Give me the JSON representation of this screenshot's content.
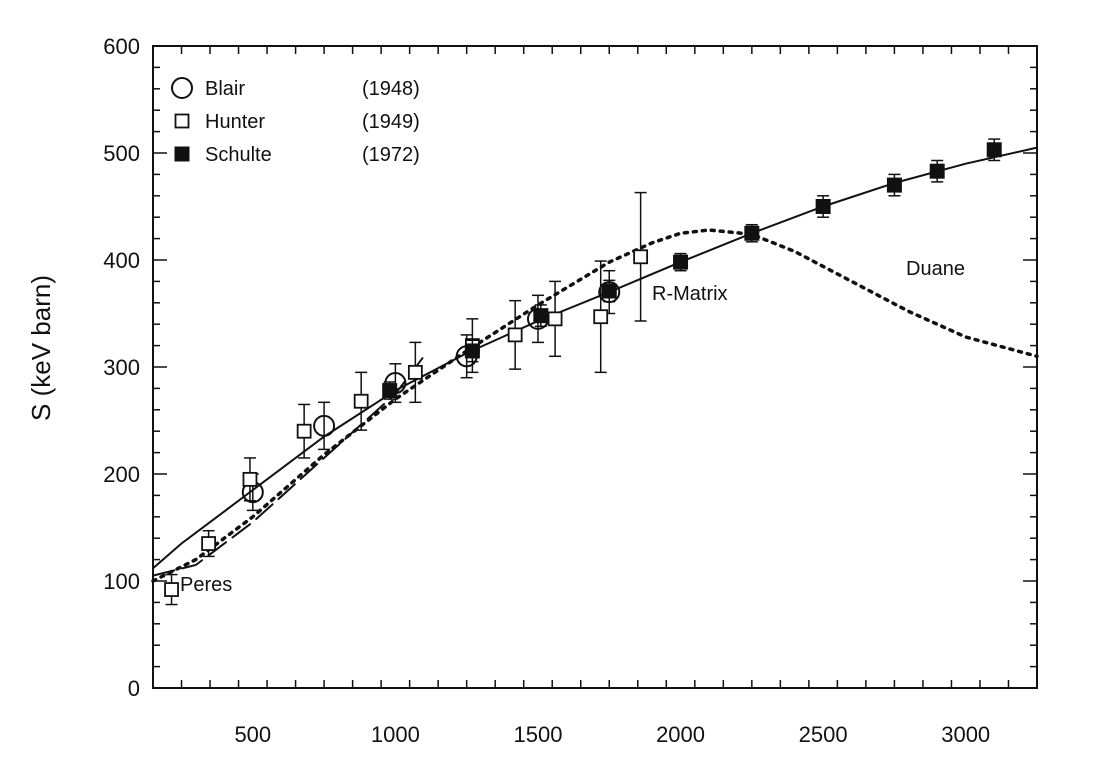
{
  "chart_data": {
    "type": "scatter",
    "title": "",
    "xlabel": "",
    "ylabel": "S  (keV barn)",
    "xlim": [
      150,
      3250
    ],
    "ylim": [
      0,
      600
    ],
    "x_ticks": [
      500,
      1000,
      1500,
      2000,
      2500,
      3000
    ],
    "y_ticks": [
      0,
      100,
      200,
      300,
      400,
      500,
      600
    ],
    "grid": false,
    "legend_position": "top-left",
    "legend": [
      {
        "marker": "open-circle",
        "name": "Blair",
        "year": "(1948)"
      },
      {
        "marker": "open-square",
        "name": "Hunter",
        "year": "(1949)"
      },
      {
        "marker": "filled-square",
        "name": "Schulte",
        "year": "(1972)"
      }
    ],
    "series": [
      {
        "name": "Blair",
        "marker": "open-circle",
        "points": [
          {
            "x": 500,
            "y": 183,
            "err": 17
          },
          {
            "x": 750,
            "y": 245,
            "err": 22
          },
          {
            "x": 1000,
            "y": 285,
            "err": 18
          },
          {
            "x": 1250,
            "y": 310,
            "err": 20
          },
          {
            "x": 1500,
            "y": 345,
            "err": 22
          },
          {
            "x": 1750,
            "y": 370,
            "err": 20
          }
        ]
      },
      {
        "name": "Hunter",
        "marker": "open-square",
        "points": [
          {
            "x": 215,
            "y": 92,
            "err": 14
          },
          {
            "x": 345,
            "y": 135,
            "err": 12
          },
          {
            "x": 490,
            "y": 195,
            "err": 20
          },
          {
            "x": 680,
            "y": 240,
            "err": 25
          },
          {
            "x": 880,
            "y": 268,
            "err": 27
          },
          {
            "x": 1070,
            "y": 295,
            "err": 28
          },
          {
            "x": 1270,
            "y": 320,
            "err": 25
          },
          {
            "x": 1420,
            "y": 330,
            "err": 32
          },
          {
            "x": 1560,
            "y": 345,
            "err": 35
          },
          {
            "x": 1720,
            "y": 347,
            "err": 52
          },
          {
            "x": 1860,
            "y": 403,
            "err": 60
          }
        ]
      },
      {
        "name": "Schulte",
        "marker": "filled-square",
        "points": [
          {
            "x": 980,
            "y": 278,
            "err": 8
          },
          {
            "x": 1270,
            "y": 315,
            "err": 10
          },
          {
            "x": 1510,
            "y": 348,
            "err": 10
          },
          {
            "x": 1750,
            "y": 371,
            "err": 10
          },
          {
            "x": 2000,
            "y": 398,
            "err": 8
          },
          {
            "x": 2250,
            "y": 425,
            "err": 8
          },
          {
            "x": 2500,
            "y": 450,
            "err": 10
          },
          {
            "x": 2750,
            "y": 470,
            "err": 10
          },
          {
            "x": 2900,
            "y": 483,
            "err": 10
          },
          {
            "x": 3100,
            "y": 503,
            "err": 10
          }
        ]
      }
    ],
    "curves": [
      {
        "label": "R-Matrix",
        "style": "solid",
        "x": [
          150,
          250,
          400,
          500,
          750,
          1000,
          1250,
          1500,
          1750,
          2000,
          2250,
          2500,
          2750,
          3000,
          3250
        ],
        "y": [
          112,
          135,
          165,
          185,
          235,
          278,
          313,
          343,
          370,
          398,
          425,
          450,
          472,
          490,
          505
        ]
      },
      {
        "label": "Duane",
        "style": "dotted",
        "x": [
          150,
          300,
          500,
          750,
          1000,
          1250,
          1500,
          1650,
          1750,
          1900,
          2000,
          2100,
          2250,
          2400,
          2600,
          2800,
          3000,
          3250
        ],
        "y": [
          100,
          120,
          160,
          218,
          270,
          315,
          358,
          382,
          398,
          416,
          425,
          428,
          424,
          408,
          380,
          352,
          328,
          310
        ]
      },
      {
        "label": "Peres",
        "style": "dashed",
        "x": [
          150,
          300,
          500,
          750,
          1000,
          1100
        ],
        "y": [
          105,
          115,
          155,
          215,
          275,
          310
        ]
      }
    ],
    "annotations": [
      "R-Matrix",
      "Duane",
      "Peres"
    ]
  }
}
